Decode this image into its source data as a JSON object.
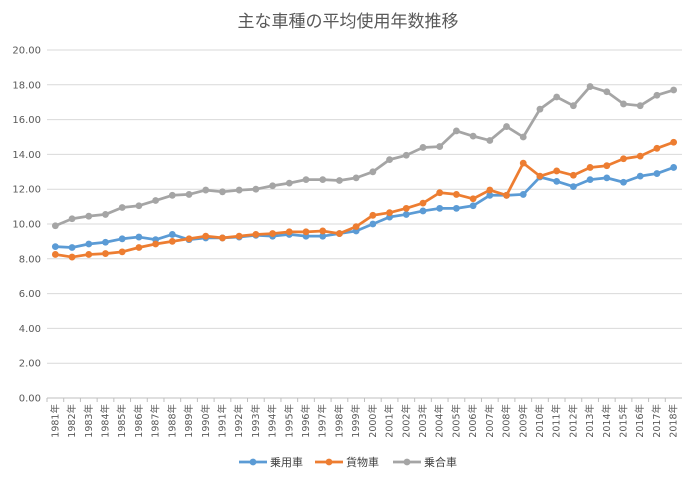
{
  "chart_data": {
    "type": "line",
    "title": "主な車種の平均使用年数推移",
    "xlabel": "",
    "ylabel": "",
    "ylim": [
      0,
      20
    ],
    "yticks": [
      "0.00",
      "2.00",
      "4.00",
      "6.00",
      "8.00",
      "10.00",
      "12.00",
      "14.00",
      "16.00",
      "18.00",
      "20.00"
    ],
    "grid": true,
    "legend_position": "bottom",
    "categories": [
      "1981年",
      "1982年",
      "1983年",
      "1984年",
      "1985年",
      "1986年",
      "1987年",
      "1988年",
      "1989年",
      "1990年",
      "1991年",
      "1992年",
      "1993年",
      "1994年",
      "1995年",
      "1996年",
      "1997年",
      "1998年",
      "1999年",
      "2000年",
      "2001年",
      "2002年",
      "2003年",
      "2004年",
      "2005年",
      "2006年",
      "2007年",
      "2008年",
      "2009年",
      "2010年",
      "2011年",
      "2012年",
      "2013年",
      "2014年",
      "2015年",
      "2016年",
      "2017年",
      "2018年"
    ],
    "series": [
      {
        "name": "乗用車",
        "color": "#5b9bd5",
        "values": [
          8.7,
          8.65,
          8.85,
          8.95,
          9.15,
          9.25,
          9.1,
          9.4,
          9.1,
          9.2,
          9.2,
          9.25,
          9.35,
          9.3,
          9.4,
          9.3,
          9.3,
          9.45,
          9.6,
          10.0,
          10.4,
          10.55,
          10.75,
          10.9,
          10.9,
          11.05,
          11.65,
          11.65,
          11.7,
          12.7,
          12.45,
          12.15,
          12.55,
          12.65,
          12.4,
          12.75,
          12.9,
          13.25
        ]
      },
      {
        "name": "貨物車",
        "color": "#ed7d31",
        "values": [
          8.25,
          8.1,
          8.25,
          8.3,
          8.4,
          8.65,
          8.85,
          9.0,
          9.15,
          9.3,
          9.2,
          9.3,
          9.4,
          9.45,
          9.55,
          9.55,
          9.6,
          9.45,
          9.85,
          10.5,
          10.65,
          10.9,
          11.2,
          11.8,
          11.7,
          11.45,
          11.95,
          11.65,
          13.5,
          12.75,
          13.05,
          12.8,
          13.25,
          13.35,
          13.75,
          13.9,
          14.35,
          14.7
        ]
      },
      {
        "name": "乗合車",
        "color": "#a5a5a5",
        "values": [
          9.9,
          10.3,
          10.45,
          10.55,
          10.95,
          11.05,
          11.35,
          11.65,
          11.7,
          11.95,
          11.85,
          11.95,
          12.0,
          12.2,
          12.35,
          12.55,
          12.55,
          12.5,
          12.65,
          13.0,
          13.7,
          13.95,
          14.4,
          14.45,
          15.35,
          15.05,
          14.8,
          15.6,
          15.0,
          16.6,
          17.3,
          16.8,
          17.9,
          17.6,
          16.9,
          16.8,
          17.4,
          17.7
        ]
      }
    ]
  }
}
